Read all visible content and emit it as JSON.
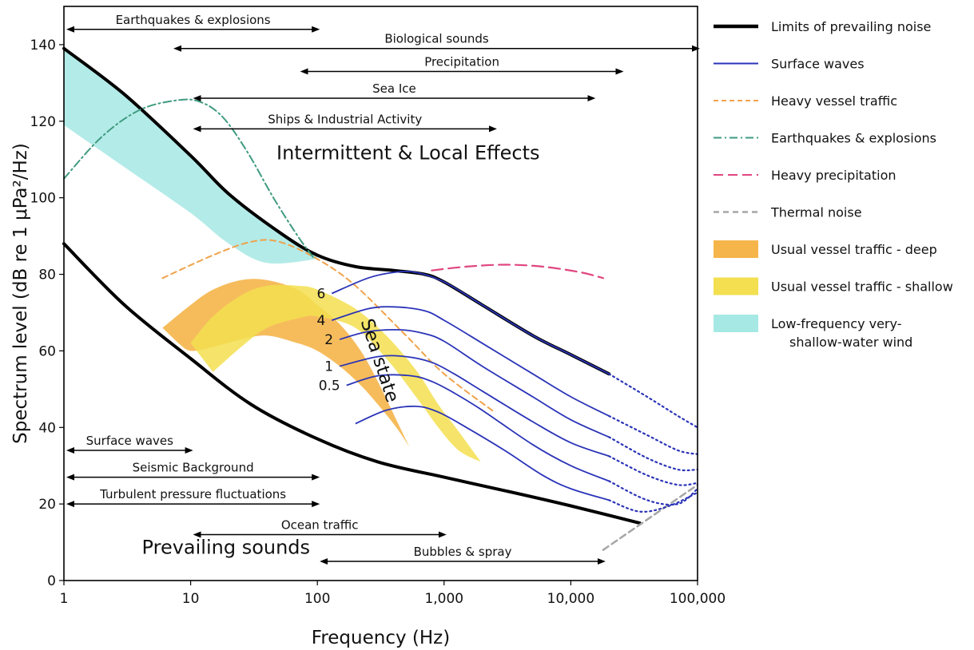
{
  "chart_data": {
    "type": "line",
    "xlabel": "Frequency (Hz)",
    "ylabel": "Spectrum level (dB re 1 μPa²/Hz)",
    "x_scale": "log",
    "xlim": [
      1,
      100000
    ],
    "ylim": [
      0,
      150
    ],
    "x_ticks": [
      {
        "v": 1,
        "label": "1"
      },
      {
        "v": 10,
        "label": "10"
      },
      {
        "v": 100,
        "label": "100"
      },
      {
        "v": 1000,
        "label": "1,000"
      },
      {
        "v": 10000,
        "label": "10,000"
      },
      {
        "v": 100000,
        "label": "100,000"
      }
    ],
    "y_ticks": [
      {
        "v": 0,
        "label": "0"
      },
      {
        "v": 20,
        "label": "20"
      },
      {
        "v": 40,
        "label": "40"
      },
      {
        "v": 60,
        "label": "60"
      },
      {
        "v": 80,
        "label": "80"
      },
      {
        "v": 100,
        "label": "100"
      },
      {
        "v": 120,
        "label": "120"
      },
      {
        "v": 140,
        "label": "140"
      }
    ],
    "colors": {
      "limits": "#000000",
      "surface": "#2b34b8",
      "vessel_heavy": "#f0a24a",
      "quake": "#3f9b80",
      "precip": "#e0467f",
      "thermal": "#a6a6a6",
      "deep": "#f5b54a",
      "shallow": "#f3df4f",
      "lowfreq": "#a6e8e4"
    },
    "series": [
      {
        "name": "Limits of prevailing noise",
        "key": "limits_upper",
        "style": "limits",
        "x": [
          1,
          3,
          10,
          20,
          50,
          100,
          200,
          400,
          700,
          1000,
          2000,
          5000,
          10000,
          20000
        ],
        "y": [
          139,
          127,
          111,
          101,
          91,
          85,
          82,
          81,
          80,
          78,
          72,
          64,
          59,
          54
        ]
      },
      {
        "key": "limits_lower",
        "style": "limits",
        "x": [
          1,
          3,
          10,
          30,
          100,
          300,
          1000,
          3000,
          10000,
          35000
        ],
        "y": [
          88,
          72,
          58,
          46,
          37,
          31,
          27,
          23.5,
          19.5,
          15
        ]
      },
      {
        "name": "Heavy vessel traffic",
        "key": "heavy_vessel",
        "style": "dashed",
        "x": [
          6,
          15,
          30,
          50,
          100,
          200,
          500,
          1000,
          2500
        ],
        "y": [
          79,
          85,
          88.5,
          88.5,
          84,
          77,
          64,
          54,
          44
        ]
      },
      {
        "name": "Earthquakes & explosions",
        "key": "quake",
        "style": "dashdot",
        "x": [
          1,
          2,
          4,
          8,
          12,
          18,
          28,
          45,
          70,
          95
        ],
        "y": [
          105,
          116,
          123,
          125.5,
          125,
          121,
          112,
          100,
          90,
          84
        ]
      },
      {
        "name": "Heavy precipitation",
        "key": "precip",
        "style": "longdash",
        "x": [
          800,
          1500,
          3000,
          6000,
          12000,
          18000
        ],
        "y": [
          81,
          82,
          82.5,
          82,
          80.5,
          79
        ]
      },
      {
        "name": "Thermal noise",
        "key": "thermal",
        "style": "dashed",
        "x": [
          18000,
          100000
        ],
        "y": [
          8,
          25
        ]
      },
      {
        "name": "Surface waves",
        "key": "sea_state",
        "style": "solid",
        "curves": [
          {
            "label": "6",
            "x": [
              130,
              250,
              400,
              600,
              1000,
              2000,
              5000,
              10000,
              20000
            ],
            "y": [
              75,
              79,
              80.5,
              80.5,
              78,
              72,
              64,
              59,
              54
            ],
            "dot_x": [
              20000,
              40000,
              70000,
              100000
            ],
            "dot_y": [
              54,
              48,
              43,
              40
            ]
          },
          {
            "label": "4",
            "x": [
              130,
              250,
              400,
              700,
              1000,
              2000,
              5000,
              10000,
              20000
            ],
            "y": [
              68,
              71,
              71.5,
              70.5,
              68,
              62,
              54,
              48,
              43
            ],
            "dot_x": [
              20000,
              40000,
              70000,
              100000
            ],
            "dot_y": [
              43,
              38,
              34,
              33
            ]
          },
          {
            "label": "2",
            "x": [
              150,
              250,
              450,
              700,
              1000,
              2000,
              5000,
              10000,
              20000
            ],
            "y": [
              63,
              65,
              65.5,
              64.5,
              62.5,
              56,
              48,
              42,
              37.5
            ],
            "dot_x": [
              20000,
              40000,
              70000,
              100000
            ],
            "dot_y": [
              37.5,
              32,
              29,
              29
            ]
          },
          {
            "label": "1",
            "x": [
              150,
              300,
              500,
              800,
              1200,
              2000,
              5000,
              10000,
              20000
            ],
            "y": [
              56,
              58.5,
              58.5,
              57,
              54,
              49.5,
              41.5,
              36,
              32.5
            ],
            "dot_x": [
              20000,
              40000,
              70000,
              100000
            ],
            "dot_y": [
              32.5,
              27.5,
              25,
              25.5
            ]
          },
          {
            "label": "0.5",
            "x": [
              170,
              300,
              550,
              800,
              1200,
              2000,
              5000,
              10000,
              20000
            ],
            "y": [
              51,
              53.5,
              53.5,
              52,
              49,
              44.5,
              35.5,
              30,
              26
            ],
            "dot_x": [
              20000,
              40000,
              70000,
              100000
            ],
            "dot_y": [
              26,
              21,
              20,
              24
            ]
          },
          {
            "label": "",
            "x": [
              200,
              350,
              600,
              900,
              1500,
              3000,
              6000,
              10000,
              20000
            ],
            "y": [
              41,
              44.5,
              45.5,
              44,
              40,
              34,
              27.5,
              24,
              21
            ],
            "dot_x": [
              20000,
              35000,
              60000,
              100000
            ],
            "dot_y": [
              21,
              18,
              19.5,
              23
            ]
          }
        ]
      }
    ],
    "bands": [
      {
        "name": "Low-frequency very-shallow-water wind",
        "key": "lowfreq",
        "upper_x": [
          1,
          3,
          10,
          20,
          50,
          100
        ],
        "upper_y": [
          139,
          127,
          111,
          101,
          91,
          85
        ],
        "lower_x": [
          1,
          3,
          10,
          20,
          40,
          100
        ],
        "lower_y": [
          119,
          108,
          96,
          88,
          83,
          84
        ]
      },
      {
        "name": "Usual vessel traffic - deep",
        "key": "deep",
        "upper_x": [
          6,
          10,
          15,
          25,
          40,
          70,
          100,
          150,
          220,
          300,
          420,
          530
        ],
        "upper_y": [
          66,
          72,
          76,
          78.5,
          78.5,
          76,
          72,
          67,
          60,
          52,
          42,
          35
        ],
        "lower_x": [
          8,
          10,
          15,
          25,
          40,
          70,
          100,
          150,
          220,
          300,
          420,
          530
        ],
        "lower_y": [
          62,
          60,
          61,
          63,
          64,
          62,
          60,
          56,
          51,
          46,
          40,
          35
        ]
      },
      {
        "name": "Usual vessel traffic - shallow",
        "key": "shallow",
        "upper_x": [
          10,
          15,
          25,
          40,
          70,
          100,
          200,
          350,
          600,
          900,
          1300,
          1950
        ],
        "upper_y": [
          62,
          69,
          74.5,
          77,
          77,
          76,
          71,
          64,
          55,
          46,
          39,
          31
        ],
        "lower_x": [
          15,
          25,
          40,
          70,
          100,
          200,
          350,
          600,
          900,
          1300,
          1950
        ],
        "lower_y": [
          54.5,
          61,
          66,
          68.5,
          69,
          66,
          58,
          48,
          40,
          34,
          31
        ]
      }
    ],
    "range_arrows": [
      {
        "label": "Earthquakes & explosions",
        "x0": 1,
        "x1": 100,
        "y": 144
      },
      {
        "label": "Biological sounds",
        "x0": 7,
        "x1": 100000,
        "y": 139
      },
      {
        "label": "Precipitation",
        "x0": 70,
        "x1": 25000,
        "y": 133
      },
      {
        "label": "Sea Ice",
        "x0": 10,
        "x1": 15000,
        "y": 126
      },
      {
        "label": "Ships & Industrial Activity",
        "x0": 10,
        "x1": 2500,
        "y": 118
      },
      {
        "label": "Surface waves",
        "x0": 1,
        "x1": 10,
        "y": 34
      },
      {
        "label": "Seismic Background",
        "x0": 1,
        "x1": 100,
        "y": 27
      },
      {
        "label": "Turbulent pressure fluctuations",
        "x0": 1,
        "x1": 100,
        "y": 20
      },
      {
        "label": "Ocean traffic",
        "x0": 10,
        "x1": 1000,
        "y": 12
      },
      {
        "label": "Bubbles & spray",
        "x0": 100,
        "x1": 18000,
        "y": 5
      }
    ],
    "annotations": {
      "intermittent": {
        "text": "Intermittent & Local Effects",
        "x": 520,
        "y": 110
      },
      "prevailing": {
        "text": "Prevailing sounds",
        "x": 19,
        "y": 7
      },
      "sea_state": {
        "text": "Sea state",
        "x": 280,
        "y": 57
      }
    },
    "legend_position": "right",
    "legend": [
      {
        "label": "Limits of prevailing noise",
        "style": "limits"
      },
      {
        "label": "Surface waves",
        "style": "surface"
      },
      {
        "label": "Heavy vessel traffic",
        "style": "vessel_heavy"
      },
      {
        "label": "Earthquakes & explosions",
        "style": "quake"
      },
      {
        "label": "Heavy precipitation",
        "style": "precip"
      },
      {
        "label": "Thermal noise",
        "style": "thermal"
      },
      {
        "label": "Usual vessel traffic - deep",
        "style": "deep"
      },
      {
        "label": "Usual vessel traffic - shallow",
        "style": "shallow"
      },
      {
        "label": "Low-frequency very-",
        "label2": "shallow-water wind",
        "style": "lowfreq"
      }
    ]
  }
}
